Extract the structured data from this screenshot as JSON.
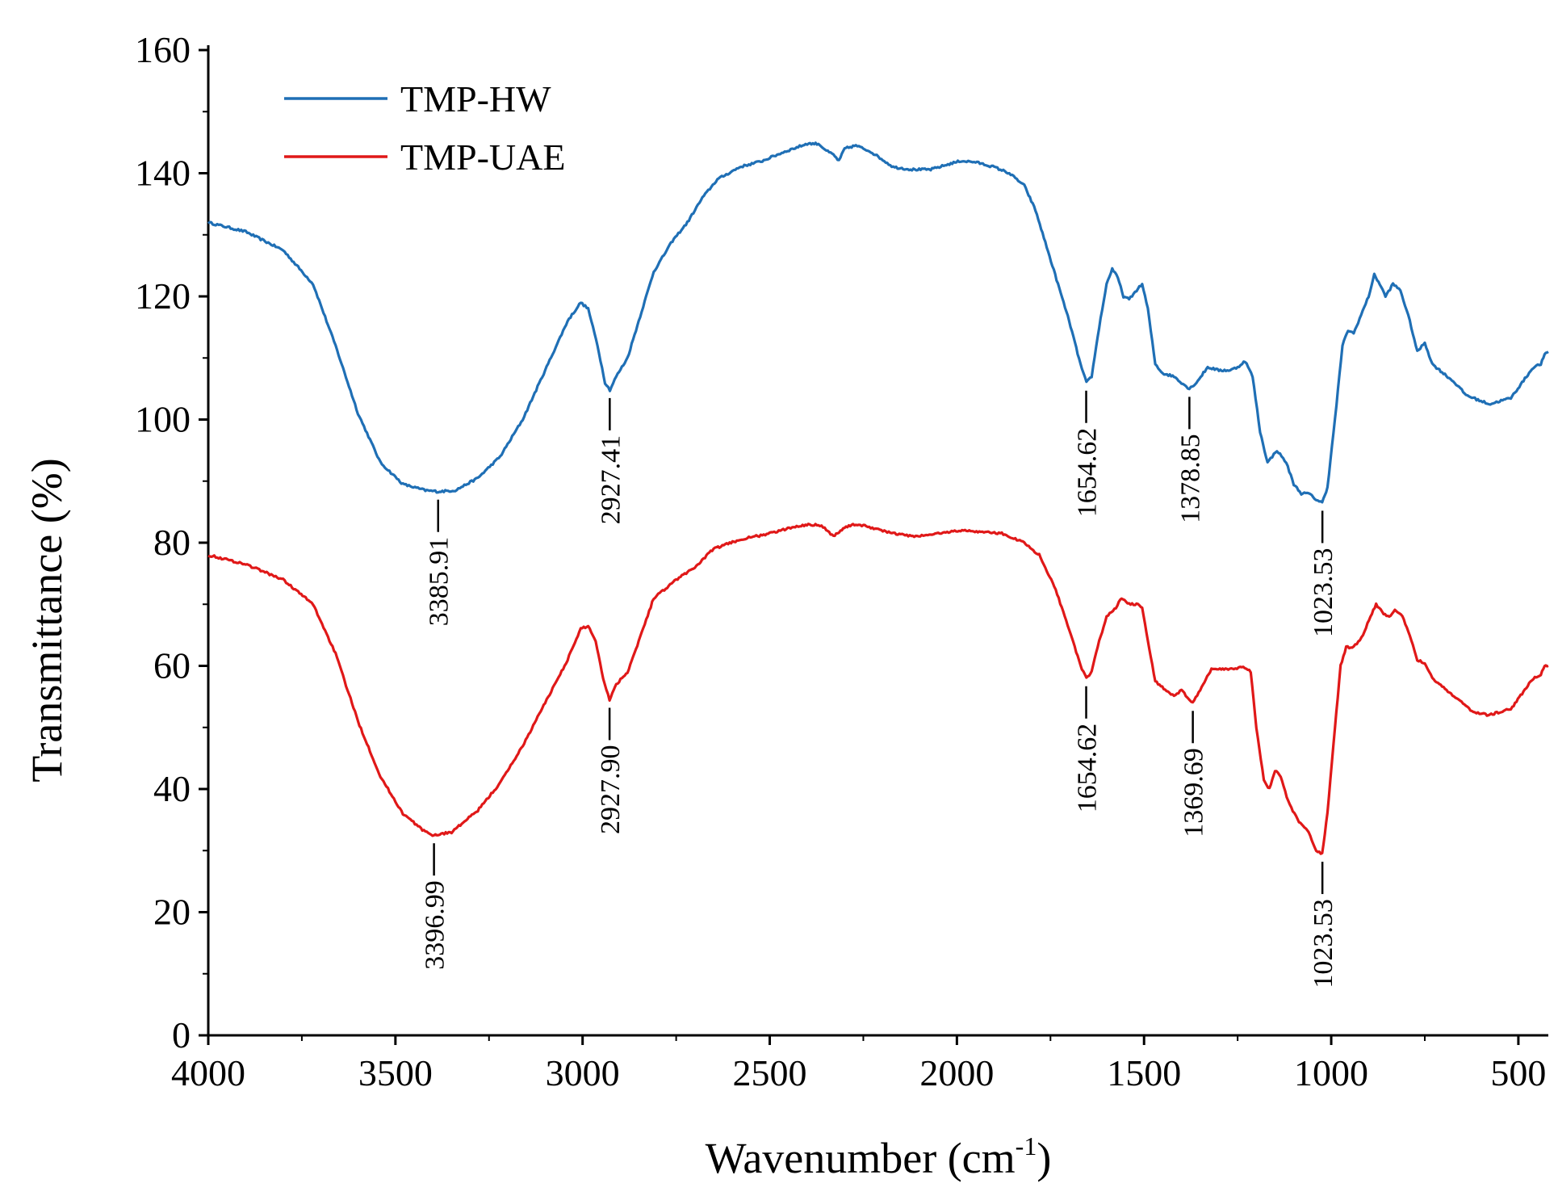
{
  "chart_data": {
    "type": "line",
    "xlabel_main": "Wavenumber (cm",
    "xlabel_sup": "-1",
    "xlabel_tail": ")",
    "ylabel": "Transmittance (%)",
    "xlim": [
      4000,
      420
    ],
    "ylim": [
      0,
      160
    ],
    "x_ticks": [
      "4000",
      "3500",
      "3000",
      "2500",
      "2000",
      "1500",
      "1000",
      "500"
    ],
    "x_tick_values": [
      4000,
      3500,
      3000,
      2500,
      2000,
      1500,
      1000,
      500
    ],
    "y_ticks": [
      "0",
      "20",
      "40",
      "60",
      "80",
      "100",
      "120",
      "140",
      "160"
    ],
    "y_tick_values": [
      0,
      20,
      40,
      60,
      80,
      100,
      120,
      140,
      160
    ],
    "series": [
      {
        "name": "TMP-HW",
        "color": "#1f6fb5",
        "points": [
          [
            4000,
            132
          ],
          [
            3900,
            130.5
          ],
          [
            3800,
            127.5
          ],
          [
            3720,
            122
          ],
          [
            3660,
            112
          ],
          [
            3600,
            101
          ],
          [
            3540,
            93
          ],
          [
            3480,
            89.5
          ],
          [
            3420,
            88.5
          ],
          [
            3386,
            88.3
          ],
          [
            3340,
            88.5
          ],
          [
            3280,
            90.5
          ],
          [
            3220,
            94
          ],
          [
            3160,
            100
          ],
          [
            3100,
            108
          ],
          [
            3040,
            116
          ],
          [
            3005,
            119
          ],
          [
            2985,
            118
          ],
          [
            2960,
            112
          ],
          [
            2940,
            106
          ],
          [
            2927,
            104.8
          ],
          [
            2910,
            107
          ],
          [
            2880,
            110
          ],
          [
            2850,
            116
          ],
          [
            2810,
            124
          ],
          [
            2760,
            129
          ],
          [
            2720,
            132
          ],
          [
            2680,
            136
          ],
          [
            2640,
            139
          ],
          [
            2580,
            141
          ],
          [
            2520,
            142
          ],
          [
            2460,
            143.5
          ],
          [
            2400,
            144.8
          ],
          [
            2370,
            144.8
          ],
          [
            2345,
            143.5
          ],
          [
            2330,
            143
          ],
          [
            2315,
            142
          ],
          [
            2300,
            144
          ],
          [
            2270,
            144.5
          ],
          [
            2230,
            143.5
          ],
          [
            2170,
            141
          ],
          [
            2120,
            140.6
          ],
          [
            2070,
            140.6
          ],
          [
            2020,
            141.5
          ],
          [
            1990,
            142
          ],
          [
            1950,
            141.8
          ],
          [
            1900,
            141
          ],
          [
            1860,
            140
          ],
          [
            1820,
            138
          ],
          [
            1790,
            134
          ],
          [
            1760,
            128
          ],
          [
            1730,
            122
          ],
          [
            1700,
            116
          ],
          [
            1670,
            109
          ],
          [
            1654,
            106
          ],
          [
            1640,
            107
          ],
          [
            1620,
            115
          ],
          [
            1600,
            122
          ],
          [
            1585,
            124.5
          ],
          [
            1570,
            123
          ],
          [
            1555,
            120
          ],
          [
            1540,
            119.5
          ],
          [
            1520,
            121
          ],
          [
            1505,
            122
          ],
          [
            1490,
            118
          ],
          [
            1470,
            109
          ],
          [
            1450,
            107.5
          ],
          [
            1420,
            107
          ],
          [
            1400,
            106
          ],
          [
            1379,
            105
          ],
          [
            1360,
            106
          ],
          [
            1330,
            108.5
          ],
          [
            1300,
            108
          ],
          [
            1270,
            108
          ],
          [
            1250,
            108.5
          ],
          [
            1230,
            109.5
          ],
          [
            1210,
            107
          ],
          [
            1190,
            98
          ],
          [
            1170,
            93
          ],
          [
            1145,
            95
          ],
          [
            1120,
            93
          ],
          [
            1100,
            89.5
          ],
          [
            1080,
            88
          ],
          [
            1060,
            88
          ],
          [
            1040,
            87
          ],
          [
            1024,
            86.5
          ],
          [
            1010,
            89
          ],
          [
            990,
            100
          ],
          [
            970,
            112
          ],
          [
            955,
            114.5
          ],
          [
            940,
            114
          ],
          [
            920,
            117
          ],
          [
            900,
            120
          ],
          [
            885,
            123.5
          ],
          [
            870,
            122
          ],
          [
            855,
            120
          ],
          [
            835,
            122
          ],
          [
            815,
            121
          ],
          [
            790,
            116
          ],
          [
            770,
            111
          ],
          [
            750,
            112.5
          ],
          [
            730,
            109
          ],
          [
            700,
            107.5
          ],
          [
            670,
            106
          ],
          [
            640,
            104
          ],
          [
            600,
            103
          ],
          [
            575,
            102.5
          ],
          [
            550,
            103
          ],
          [
            520,
            103.5
          ],
          [
            490,
            106
          ],
          [
            460,
            108.5
          ],
          [
            440,
            109
          ],
          [
            430,
            110.5
          ],
          [
            420,
            111
          ]
        ]
      },
      {
        "name": "TMP-UAE",
        "color": "#e01818",
        "points": [
          [
            4000,
            78
          ],
          [
            3900,
            76.5
          ],
          [
            3800,
            74
          ],
          [
            3720,
            70
          ],
          [
            3660,
            62
          ],
          [
            3600,
            51
          ],
          [
            3540,
            42
          ],
          [
            3480,
            36
          ],
          [
            3420,
            33
          ],
          [
            3397,
            32.5
          ],
          [
            3350,
            33
          ],
          [
            3280,
            36.5
          ],
          [
            3220,
            41
          ],
          [
            3160,
            47
          ],
          [
            3100,
            54
          ],
          [
            3040,
            61
          ],
          [
            3005,
            66
          ],
          [
            2985,
            66.5
          ],
          [
            2965,
            64
          ],
          [
            2945,
            58
          ],
          [
            2928,
            54.5
          ],
          [
            2910,
            57
          ],
          [
            2880,
            59
          ],
          [
            2850,
            64
          ],
          [
            2810,
            71
          ],
          [
            2750,
            74
          ],
          [
            2700,
            76
          ],
          [
            2650,
            79
          ],
          [
            2580,
            80.5
          ],
          [
            2500,
            81.5
          ],
          [
            2420,
            82.8
          ],
          [
            2370,
            83
          ],
          [
            2345,
            82
          ],
          [
            2330,
            81
          ],
          [
            2300,
            82.5
          ],
          [
            2270,
            83
          ],
          [
            2230,
            82.5
          ],
          [
            2170,
            81.5
          ],
          [
            2110,
            81
          ],
          [
            2050,
            81.5
          ],
          [
            1990,
            82
          ],
          [
            1940,
            81.8
          ],
          [
            1880,
            81.5
          ],
          [
            1820,
            80
          ],
          [
            1780,
            78
          ],
          [
            1740,
            73
          ],
          [
            1700,
            66
          ],
          [
            1670,
            60
          ],
          [
            1654,
            58
          ],
          [
            1640,
            59
          ],
          [
            1620,
            64
          ],
          [
            1600,
            68
          ],
          [
            1575,
            69.5
          ],
          [
            1560,
            71
          ],
          [
            1540,
            70
          ],
          [
            1520,
            70
          ],
          [
            1505,
            69.5
          ],
          [
            1490,
            64
          ],
          [
            1470,
            57.5
          ],
          [
            1440,
            56
          ],
          [
            1420,
            55
          ],
          [
            1400,
            56
          ],
          [
            1385,
            55
          ],
          [
            1370,
            54
          ],
          [
            1350,
            56
          ],
          [
            1320,
            59.5
          ],
          [
            1290,
            59.5
          ],
          [
            1260,
            59.5
          ],
          [
            1235,
            60
          ],
          [
            1215,
            59
          ],
          [
            1200,
            50
          ],
          [
            1180,
            41.5
          ],
          [
            1165,
            40
          ],
          [
            1150,
            43
          ],
          [
            1135,
            42
          ],
          [
            1115,
            38
          ],
          [
            1090,
            35
          ],
          [
            1075,
            34
          ],
          [
            1060,
            33
          ],
          [
            1040,
            30
          ],
          [
            1024,
            29.5
          ],
          [
            1010,
            36
          ],
          [
            990,
            50
          ],
          [
            975,
            60
          ],
          [
            960,
            63
          ],
          [
            940,
            63
          ],
          [
            915,
            65
          ],
          [
            895,
            68
          ],
          [
            880,
            70
          ],
          [
            860,
            68.5
          ],
          [
            845,
            68
          ],
          [
            830,
            69
          ],
          [
            810,
            68
          ],
          [
            790,
            65
          ],
          [
            770,
            61
          ],
          [
            750,
            60.5
          ],
          [
            730,
            58
          ],
          [
            700,
            56.5
          ],
          [
            660,
            54.5
          ],
          [
            620,
            52.5
          ],
          [
            580,
            52
          ],
          [
            550,
            52.5
          ],
          [
            520,
            53
          ],
          [
            490,
            55.5
          ],
          [
            460,
            58
          ],
          [
            440,
            58.5
          ],
          [
            430,
            60
          ],
          [
            420,
            60
          ]
        ]
      }
    ],
    "annotations": [
      {
        "series": 0,
        "x": 3385.91,
        "y": 88.3,
        "label": "3385.91",
        "dir": "down"
      },
      {
        "series": 0,
        "x": 2927.41,
        "y": 104.8,
        "label": "2927.41",
        "dir": "down"
      },
      {
        "series": 0,
        "x": 1654.62,
        "y": 106,
        "label": "1654.62",
        "dir": "down"
      },
      {
        "series": 0,
        "x": 1378.85,
        "y": 105,
        "label": "1378.85",
        "dir": "down"
      },
      {
        "series": 0,
        "x": 1023.53,
        "y": 86.5,
        "label": "1023.53",
        "dir": "down"
      },
      {
        "series": 1,
        "x": 3396.99,
        "y": 32.5,
        "label": "3396.99",
        "dir": "down"
      },
      {
        "series": 1,
        "x": 2927.9,
        "y": 54.5,
        "label": "2927.90",
        "dir": "down"
      },
      {
        "series": 1,
        "x": 1654.62,
        "y": 58,
        "label": "1654.62",
        "dir": "down"
      },
      {
        "series": 1,
        "x": 1369.69,
        "y": 54,
        "label": "1369.69",
        "dir": "down"
      },
      {
        "series": 1,
        "x": 1023.53,
        "y": 29.5,
        "label": "1023.53",
        "dir": "down"
      }
    ],
    "legend": {
      "position": "top-left",
      "entries": [
        "TMP-HW",
        "TMP-UAE"
      ]
    }
  }
}
